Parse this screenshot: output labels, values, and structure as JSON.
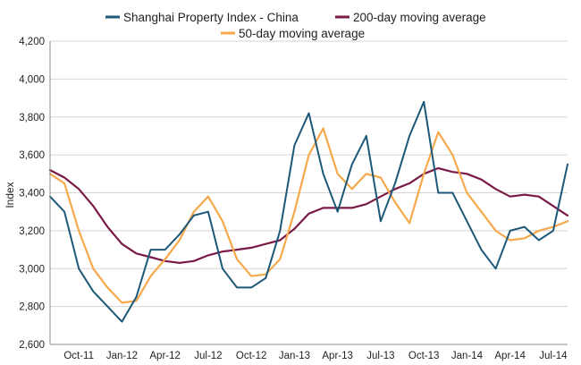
{
  "chart_data": {
    "type": "line",
    "title": "",
    "xlabel": "",
    "ylabel": "Index",
    "ylim": [
      2600,
      4200
    ],
    "yticks": [
      2600,
      2800,
      3000,
      3200,
      3400,
      3600,
      3800,
      4000,
      4200
    ],
    "ytick_labels": [
      "2,600",
      "2,800",
      "3,000",
      "3,200",
      "3,400",
      "3,600",
      "3,800",
      "4,000",
      "4,200"
    ],
    "x_range": [
      "2011-08",
      "2014-08"
    ],
    "xticks": [
      "Oct-11",
      "Jan-12",
      "Apr-12",
      "Jul-12",
      "Oct-12",
      "Jan-13",
      "Apr-13",
      "Jul-13",
      "Oct-13",
      "Jan-14",
      "Apr-14",
      "Jul-14"
    ],
    "grid": "horizontal",
    "legend_position": "top",
    "x": [
      "2011-08",
      "2011-09",
      "2011-10",
      "2011-11",
      "2011-12",
      "2012-01",
      "2012-02",
      "2012-03",
      "2012-04",
      "2012-05",
      "2012-06",
      "2012-07",
      "2012-08",
      "2012-09",
      "2012-10",
      "2012-11",
      "2012-12",
      "2013-01",
      "2013-02",
      "2013-03",
      "2013-04",
      "2013-05",
      "2013-06",
      "2013-07",
      "2013-08",
      "2013-09",
      "2013-10",
      "2013-11",
      "2013-12",
      "2014-01",
      "2014-02",
      "2014-03",
      "2014-04",
      "2014-05",
      "2014-06",
      "2014-07",
      "2014-08"
    ],
    "series": [
      {
        "name": "Shanghai Property Index - China",
        "color": "#1d5878",
        "values": [
          3380,
          3300,
          3000,
          2880,
          2800,
          2720,
          2850,
          3100,
          3100,
          3180,
          3280,
          3300,
          3000,
          2900,
          2900,
          2950,
          3200,
          3650,
          3820,
          3500,
          3300,
          3550,
          3700,
          3250,
          3450,
          3700,
          3880,
          3400,
          3400,
          3250,
          3100,
          3000,
          3200,
          3220,
          3150,
          3200,
          3550
        ]
      },
      {
        "name": "200-day moving average",
        "color": "#7a1b47",
        "values": [
          3520,
          3480,
          3420,
          3330,
          3220,
          3130,
          3080,
          3060,
          3040,
          3030,
          3040,
          3070,
          3090,
          3100,
          3110,
          3130,
          3150,
          3210,
          3290,
          3320,
          3320,
          3320,
          3340,
          3380,
          3420,
          3450,
          3500,
          3530,
          3510,
          3500,
          3470,
          3420,
          3380,
          3390,
          3380,
          3330,
          3280
        ]
      },
      {
        "name": "50-day moving average",
        "color": "#f5a94c",
        "values": [
          3500,
          3450,
          3200,
          3000,
          2900,
          2820,
          2830,
          2960,
          3050,
          3150,
          3300,
          3380,
          3250,
          3050,
          2960,
          2970,
          3050,
          3300,
          3600,
          3740,
          3500,
          3420,
          3500,
          3480,
          3350,
          3240,
          3500,
          3720,
          3600,
          3400,
          3300,
          3200,
          3150,
          3160,
          3200,
          3220,
          3250
        ]
      }
    ]
  }
}
